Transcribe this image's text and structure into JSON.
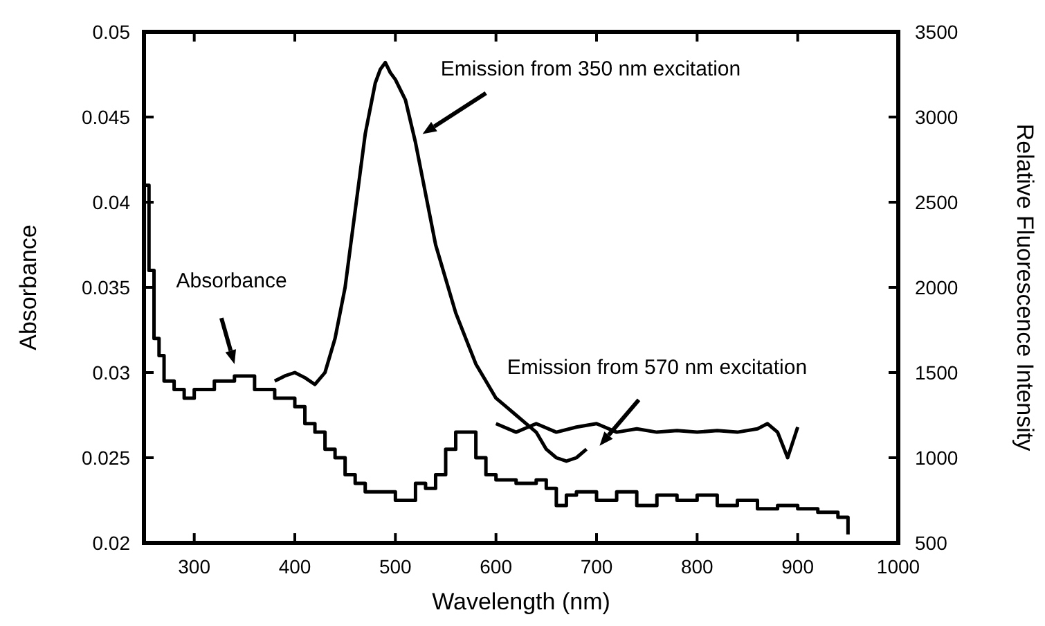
{
  "chart_data": {
    "type": "line",
    "xlabel": "Wavelength  (nm)",
    "ylabel": "Absorbance",
    "y2label": "Relative Fluorescence Intensity",
    "xlim": [
      250,
      1000
    ],
    "xticks": [
      300,
      400,
      500,
      600,
      700,
      800,
      900,
      1000
    ],
    "ylim": [
      0.02,
      0.05
    ],
    "yticks": [
      0.02,
      0.025,
      0.03,
      0.035,
      0.04,
      0.045,
      0.05
    ],
    "y2lim": [
      500,
      3500
    ],
    "y2ticks": [
      500,
      1000,
      1500,
      2000,
      2500,
      3000,
      3500
    ],
    "series": [
      {
        "name": "Absorbance",
        "type": "step",
        "color": "#000000",
        "x": [
          250,
          255,
          260,
          265,
          270,
          280,
          290,
          300,
          320,
          340,
          360,
          380,
          400,
          410,
          420,
          430,
          440,
          450,
          460,
          470,
          480,
          500,
          515,
          520,
          530,
          540,
          550,
          560,
          575,
          580,
          590,
          600,
          620,
          640,
          650,
          660,
          670,
          680,
          700,
          720,
          740,
          760,
          780,
          800,
          820,
          840,
          860,
          880,
          900,
          920,
          940,
          950
        ],
        "values": [
          0.041,
          0.036,
          0.032,
          0.031,
          0.0295,
          0.029,
          0.0285,
          0.029,
          0.0295,
          0.0298,
          0.029,
          0.0285,
          0.028,
          0.027,
          0.0265,
          0.0255,
          0.025,
          0.024,
          0.0235,
          0.023,
          0.023,
          0.0225,
          0.0225,
          0.0235,
          0.0232,
          0.024,
          0.0255,
          0.0265,
          0.0265,
          0.025,
          0.024,
          0.0237,
          0.0235,
          0.0237,
          0.0232,
          0.0222,
          0.0228,
          0.023,
          0.0225,
          0.023,
          0.0222,
          0.0228,
          0.0225,
          0.0228,
          0.0222,
          0.0225,
          0.022,
          0.0222,
          0.022,
          0.0218,
          0.0215,
          0.0205
        ]
      },
      {
        "name": "Emission from 350 nm excitation",
        "axis": "y2",
        "color": "#000000",
        "x": [
          380,
          390,
          400,
          410,
          420,
          430,
          440,
          450,
          460,
          470,
          480,
          485,
          490,
          495,
          500,
          510,
          520,
          530,
          540,
          550,
          560,
          570,
          580,
          590,
          600,
          610,
          620,
          640,
          650,
          660,
          670,
          680,
          690
        ],
        "values": [
          1450,
          1480,
          1500,
          1470,
          1430,
          1500,
          1700,
          2000,
          2450,
          2900,
          3200,
          3280,
          3320,
          3260,
          3220,
          3100,
          2850,
          2550,
          2250,
          2050,
          1850,
          1700,
          1550,
          1450,
          1350,
          1300,
          1250,
          1150,
          1050,
          1000,
          980,
          1000,
          1050
        ]
      },
      {
        "name": "Emission from 570 nm excitation",
        "axis": "y2",
        "color": "#000000",
        "x": [
          600,
          620,
          640,
          660,
          680,
          700,
          720,
          740,
          760,
          780,
          800,
          820,
          840,
          860,
          870,
          880,
          890,
          900
        ],
        "values": [
          1200,
          1150,
          1200,
          1150,
          1180,
          1200,
          1150,
          1170,
          1150,
          1160,
          1150,
          1160,
          1150,
          1170,
          1200,
          1150,
          1000,
          1180
        ]
      }
    ]
  }
}
